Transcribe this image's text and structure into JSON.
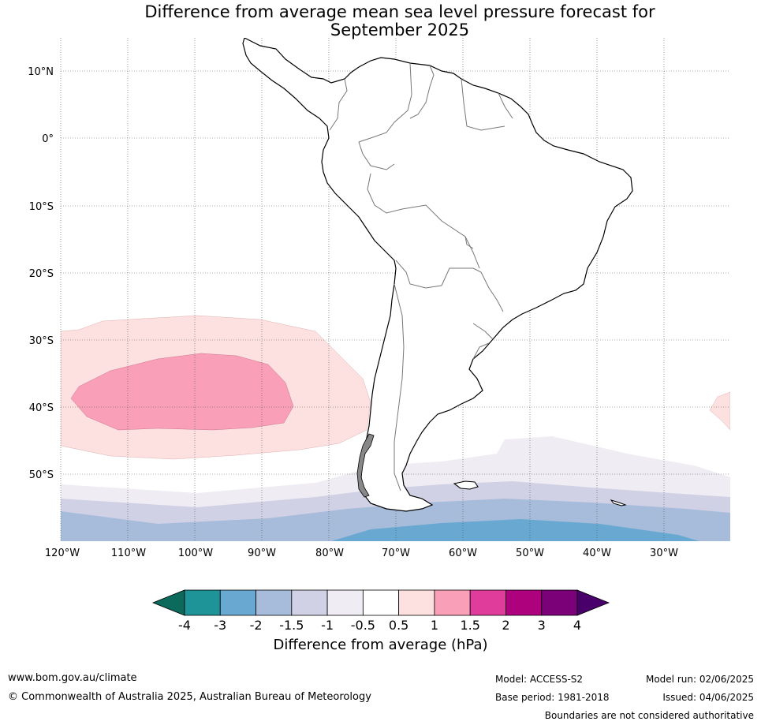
{
  "title_line1": "Difference from average mean sea level pressure forecast for",
  "title_line2": "September 2025",
  "axes": {
    "lat_labels": [
      "10°N",
      "0°",
      "10°S",
      "20°S",
      "30°S",
      "40°S",
      "50°S"
    ],
    "lon_labels": [
      "120°W",
      "110°W",
      "100°W",
      "90°W",
      "80°W",
      "70°W",
      "60°W",
      "50°W",
      "40°W",
      "30°W"
    ]
  },
  "colorbar": {
    "label": "Difference from average (hPa)",
    "ticks": [
      "-4",
      "-3",
      "-2",
      "-1.5",
      "-1",
      "-0.5",
      "0.5",
      "1",
      "1.5",
      "2",
      "3",
      "4"
    ],
    "colors": [
      "#1e9498",
      "#69a9d1",
      "#a7bbdb",
      "#d1d1e6",
      "#f0ecf3",
      "#ffffff",
      "#fde0e0",
      "#f99fb8",
      "#e03c9c",
      "#ae017e",
      "#7a0177"
    ],
    "under_color": "#0b6a5c",
    "over_color": "#49006a"
  },
  "footer": {
    "url": "www.bom.gov.au/climate",
    "copyright": "© Commonwealth of Australia 2025, Australian Bureau of Meteorology",
    "model": "Model: ACCESS-S2",
    "base_period": "Base period: 1981-2018",
    "model_run": "Model run: 02/06/2025",
    "issued": "Issued: 04/06/2025",
    "disclaimer": "Boundaries are not considered authoritative"
  }
}
